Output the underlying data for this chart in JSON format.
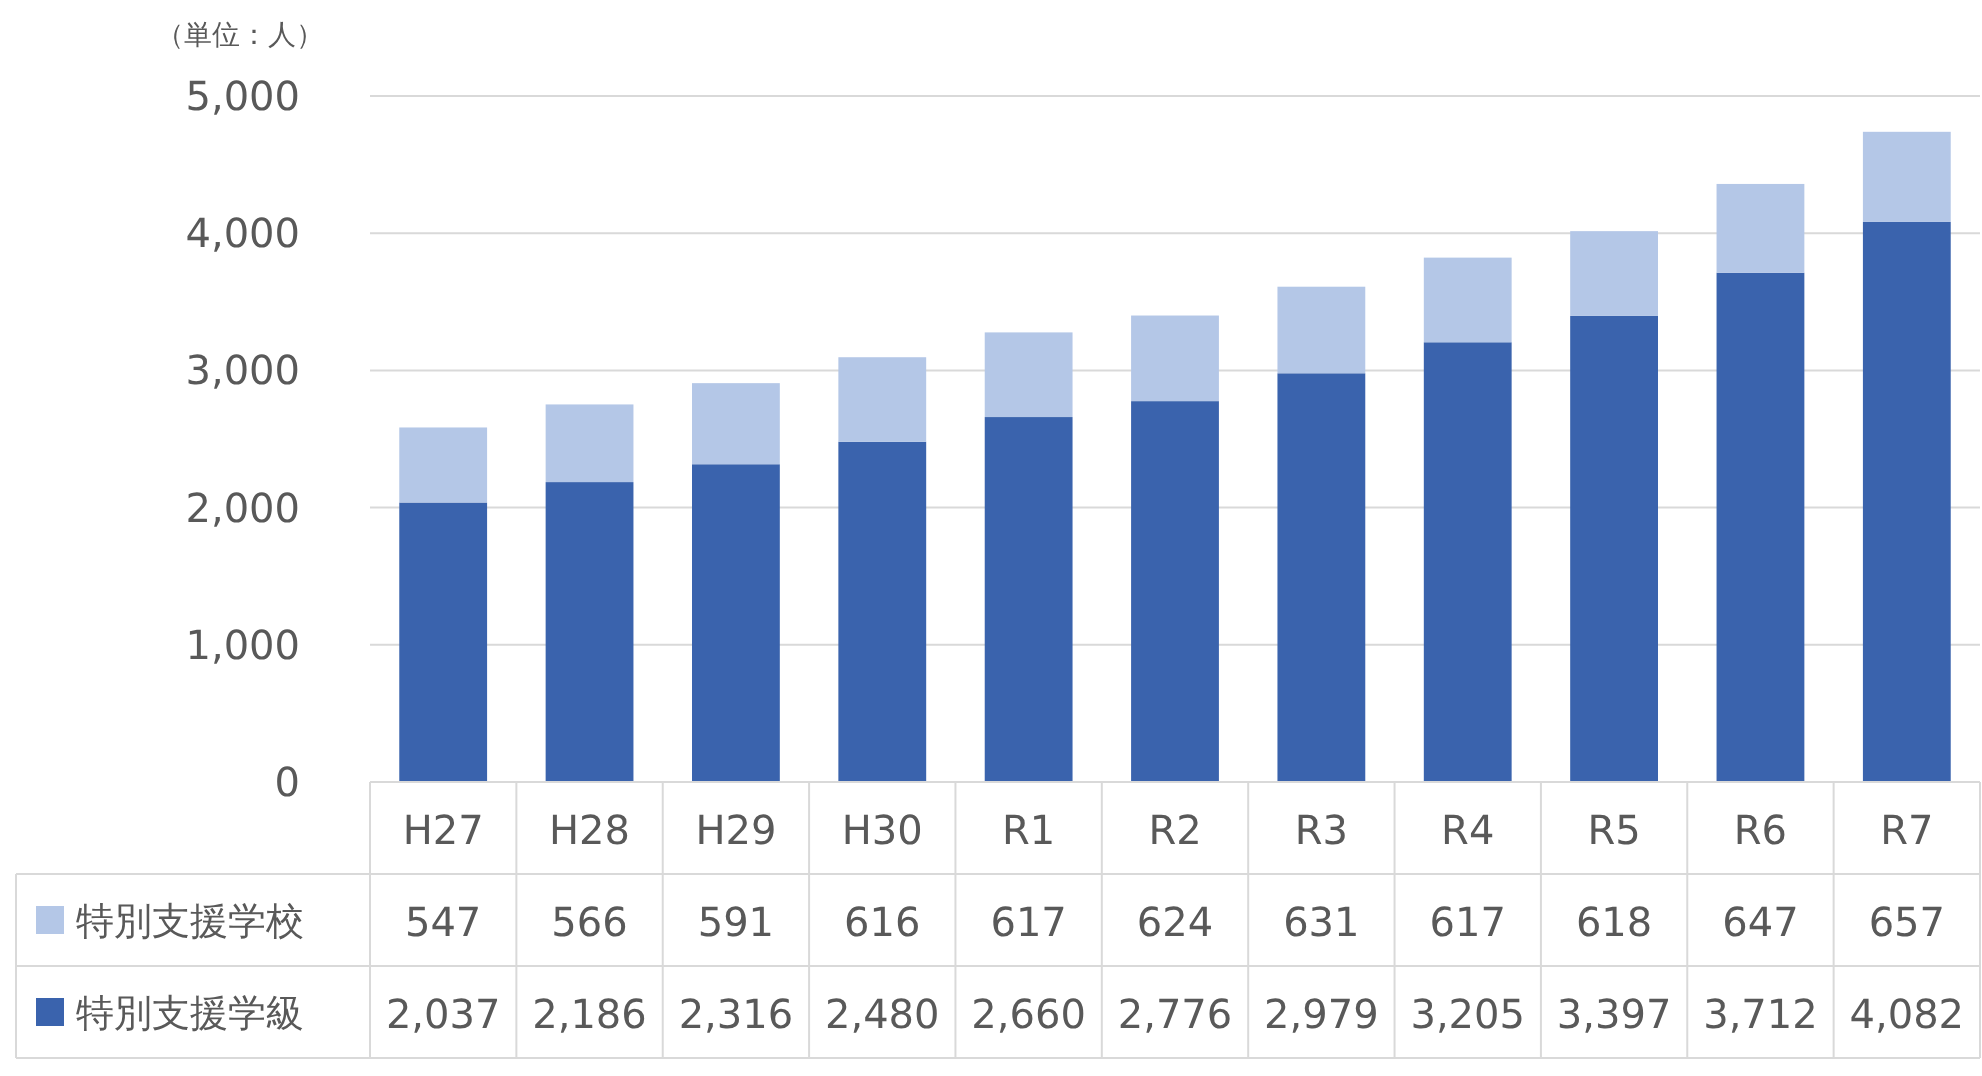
{
  "chart_data": {
    "type": "bar",
    "stacked": true,
    "ylabel": "（単位：人）",
    "categories": [
      "H27",
      "H28",
      "H29",
      "H30",
      "R1",
      "R2",
      "R3",
      "R4",
      "R5",
      "R6",
      "R7"
    ],
    "series": [
      {
        "name": "特別支援学級",
        "color": "#3a63ad",
        "values": [
          2037,
          2186,
          2316,
          2480,
          2660,
          2776,
          2979,
          3205,
          3397,
          3712,
          4082
        ],
        "value_labels": [
          "2,037",
          "2,186",
          "2,316",
          "2,480",
          "2,660",
          "2,776",
          "2,979",
          "3,205",
          "3,397",
          "3,712",
          "4,082"
        ]
      },
      {
        "name": "特別支援学校",
        "color": "#b4c7e7",
        "values": [
          547,
          566,
          591,
          616,
          617,
          624,
          631,
          617,
          618,
          647,
          657
        ],
        "value_labels": [
          "547",
          "566",
          "591",
          "616",
          "617",
          "624",
          "631",
          "617",
          "618",
          "647",
          "657"
        ]
      }
    ],
    "ylim": [
      0,
      5000
    ],
    "yticks": [
      0,
      {
        "value": 1000,
        "label": "1,000"
      },
      {
        "value": 2000,
        "label": "2,000"
      },
      {
        "value": 3000,
        "label": "3,000"
      },
      {
        "value": 4000,
        "label": "4,000"
      },
      {
        "value": 5000,
        "label": "5,000"
      }
    ],
    "grid": "y",
    "legend": "bottom"
  }
}
